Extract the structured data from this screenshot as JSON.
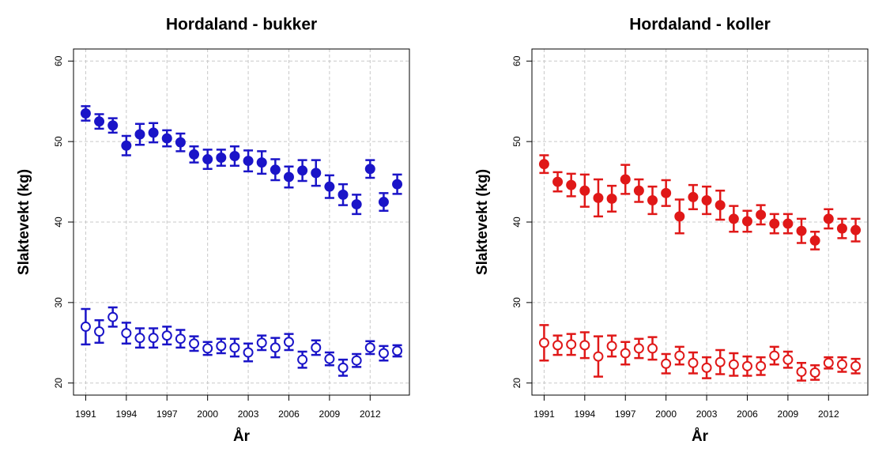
{
  "chart_data": [
    {
      "type": "errorbar",
      "title": "Hordaland - bukker",
      "xlabel": "År",
      "ylabel": "Slaktevekt (kg)",
      "x": [
        1991,
        1992,
        1993,
        1994,
        1995,
        1996,
        1997,
        1998,
        1999,
        2000,
        2001,
        2002,
        2003,
        2004,
        2005,
        2006,
        2007,
        2008,
        2009,
        2010,
        2011,
        2012,
        2013,
        2014
      ],
      "xlim": [
        1990.1,
        2014.9
      ],
      "xticks": [
        1991,
        1994,
        1997,
        2000,
        2003,
        2006,
        2009,
        2012
      ],
      "ylim": [
        18.5,
        61.5
      ],
      "yticks": [
        20,
        30,
        40,
        50,
        60
      ],
      "grid": true,
      "series": [
        {
          "color": "#1a14c8",
          "marker": "filled",
          "values": [
            53.5,
            52.5,
            52.0,
            49.5,
            50.9,
            51.1,
            50.4,
            49.9,
            48.4,
            47.8,
            48.0,
            48.2,
            47.6,
            47.4,
            46.5,
            45.6,
            46.4,
            46.1,
            44.4,
            43.4,
            42.2,
            46.6,
            42.5,
            44.7
          ],
          "errors": [
            0.9,
            0.9,
            0.9,
            1.2,
            1.3,
            1.2,
            1.0,
            1.1,
            1.0,
            1.2,
            1.0,
            1.2,
            1.3,
            1.4,
            1.3,
            1.3,
            1.3,
            1.6,
            1.4,
            1.3,
            1.2,
            1.1,
            1.1,
            1.2
          ]
        },
        {
          "color": "#1a14c8",
          "marker": "open",
          "values": [
            27.0,
            26.4,
            28.2,
            26.2,
            25.6,
            25.6,
            25.9,
            25.5,
            24.9,
            24.3,
            24.6,
            24.4,
            23.8,
            25.0,
            24.4,
            25.1,
            22.9,
            24.4,
            23.0,
            21.9,
            22.8,
            24.4,
            23.7,
            24.0
          ],
          "errors": [
            2.2,
            1.4,
            1.2,
            1.3,
            1.2,
            1.2,
            1.1,
            1.1,
            0.9,
            0.8,
            0.9,
            1.1,
            1.1,
            0.9,
            1.2,
            1.0,
            1.0,
            0.9,
            0.8,
            1.0,
            0.8,
            0.8,
            0.9,
            0.7
          ]
        }
      ]
    },
    {
      "type": "errorbar",
      "title": "Hordaland - koller",
      "xlabel": "År",
      "ylabel": "Slaktevekt (kg)",
      "x": [
        1991,
        1992,
        1993,
        1994,
        1995,
        1996,
        1997,
        1998,
        1999,
        2000,
        2001,
        2002,
        2003,
        2004,
        2005,
        2006,
        2007,
        2008,
        2009,
        2010,
        2011,
        2012,
        2013,
        2014
      ],
      "xlim": [
        1990.1,
        2014.9
      ],
      "xticks": [
        1991,
        1994,
        1997,
        2000,
        2003,
        2006,
        2009,
        2012
      ],
      "ylim": [
        18.5,
        61.5
      ],
      "yticks": [
        20,
        30,
        40,
        50,
        60
      ],
      "grid": true,
      "series": [
        {
          "color": "#e01818",
          "marker": "filled",
          "values": [
            47.2,
            45.0,
            44.6,
            43.9,
            43.0,
            42.9,
            45.3,
            43.9,
            42.7,
            43.6,
            40.7,
            43.1,
            42.7,
            42.1,
            40.4,
            40.1,
            40.9,
            39.8,
            39.8,
            38.9,
            37.7,
            40.4,
            39.2,
            39.0
          ],
          "errors": [
            1.1,
            1.2,
            1.4,
            2.0,
            2.3,
            1.6,
            1.8,
            1.4,
            1.7,
            1.6,
            2.1,
            1.5,
            1.7,
            1.8,
            1.6,
            1.3,
            1.2,
            1.2,
            1.2,
            1.5,
            1.1,
            1.2,
            1.2,
            1.4
          ]
        },
        {
          "color": "#e01818",
          "marker": "open",
          "values": [
            25.0,
            24.7,
            24.8,
            24.7,
            23.3,
            24.6,
            23.7,
            24.3,
            24.3,
            22.4,
            23.4,
            22.5,
            21.9,
            22.6,
            22.3,
            22.1,
            22.1,
            23.4,
            22.9,
            21.4,
            21.3,
            22.5,
            22.3,
            22.1
          ],
          "errors": [
            2.2,
            1.2,
            1.3,
            1.6,
            2.5,
            1.3,
            1.4,
            1.2,
            1.4,
            1.2,
            1.1,
            1.3,
            1.3,
            1.5,
            1.4,
            1.2,
            1.1,
            1.1,
            1.0,
            1.1,
            0.9,
            0.7,
            0.9,
            0.9
          ]
        }
      ]
    }
  ]
}
